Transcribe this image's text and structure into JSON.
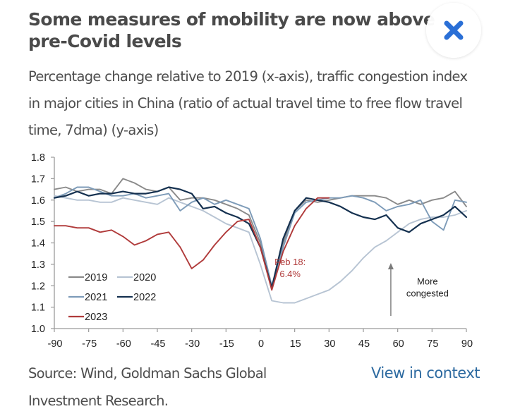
{
  "header": {
    "title": "Some measures of mobility are now above pre-Covid levels",
    "subtitle": "Percentage change relative to 2019 (x-axis), traffic congestion index in major cities in China (ratio of actual travel time to free flow travel time, 7dma) (y-axis)",
    "close_icon": "close-x-icon",
    "close_color": "#2a6fd6"
  },
  "footer": {
    "source": "Source: Wind, Goldman Sachs Global Investment Research.",
    "link_label": "View in context",
    "link_color": "#2d6aa0"
  },
  "chart_data": {
    "type": "line",
    "title": "",
    "xlabel": "",
    "ylabel": "",
    "xlim": [
      -90,
      90
    ],
    "ylim": [
      1.0,
      1.8
    ],
    "xticks": [
      "-90",
      "-75",
      "-60",
      "-45",
      "-30",
      "-15",
      "0",
      "15",
      "30",
      "45",
      "60",
      "75",
      "90"
    ],
    "xtick_values": [
      -90,
      -75,
      -60,
      -45,
      -30,
      -15,
      0,
      15,
      30,
      45,
      60,
      75,
      90
    ],
    "yticks": [
      "1.0",
      "1.1",
      "1.2",
      "1.3",
      "1.4",
      "1.5",
      "1.6",
      "1.7",
      "1.8"
    ],
    "ytick_values": [
      1.0,
      1.1,
      1.2,
      1.3,
      1.4,
      1.5,
      1.6,
      1.7,
      1.8
    ],
    "grid": false,
    "legend": {
      "placement": "bottom-left",
      "columns": 2
    },
    "x": [
      -90,
      -85,
      -80,
      -75,
      -70,
      -65,
      -60,
      -55,
      -50,
      -45,
      -40,
      -35,
      -30,
      -25,
      -20,
      -15,
      -10,
      -5,
      0,
      5,
      10,
      15,
      20,
      25,
      30,
      35,
      40,
      45,
      50,
      55,
      60,
      65,
      70,
      75,
      80,
      85,
      90
    ],
    "series": [
      {
        "name": "2019",
        "color": "#8a8a8a",
        "values": [
          1.65,
          1.66,
          1.64,
          1.65,
          1.65,
          1.63,
          1.7,
          1.68,
          1.65,
          1.64,
          1.66,
          1.6,
          1.61,
          1.61,
          1.6,
          1.58,
          1.56,
          1.53,
          1.4,
          1.19,
          1.4,
          1.55,
          1.6,
          1.59,
          1.6,
          1.61,
          1.62,
          1.62,
          1.62,
          1.61,
          1.58,
          1.6,
          1.58,
          1.6,
          1.61,
          1.64,
          1.57
        ]
      },
      {
        "name": "2020",
        "color": "#b7c4d3",
        "values": [
          1.62,
          1.61,
          1.6,
          1.6,
          1.59,
          1.59,
          1.61,
          1.6,
          1.59,
          1.58,
          1.61,
          1.59,
          1.57,
          1.55,
          1.52,
          1.49,
          1.47,
          1.45,
          1.3,
          1.13,
          1.12,
          1.12,
          1.14,
          1.16,
          1.18,
          1.22,
          1.27,
          1.33,
          1.38,
          1.41,
          1.45,
          1.49,
          1.51,
          1.52,
          1.52,
          1.53,
          1.55
        ]
      },
      {
        "name": "2021",
        "color": "#7d9bb8",
        "values": [
          1.61,
          1.63,
          1.66,
          1.66,
          1.64,
          1.62,
          1.62,
          1.63,
          1.61,
          1.62,
          1.63,
          1.55,
          1.59,
          1.61,
          1.58,
          1.6,
          1.58,
          1.56,
          1.42,
          1.2,
          1.38,
          1.54,
          1.59,
          1.6,
          1.61,
          1.61,
          1.62,
          1.61,
          1.59,
          1.55,
          1.57,
          1.58,
          1.6,
          1.5,
          1.46,
          1.6,
          1.59
        ]
      },
      {
        "name": "2022",
        "color": "#14304f",
        "values": [
          1.61,
          1.62,
          1.64,
          1.62,
          1.63,
          1.63,
          1.64,
          1.63,
          1.63,
          1.64,
          1.66,
          1.65,
          1.63,
          1.56,
          1.57,
          1.54,
          1.52,
          1.49,
          1.38,
          1.19,
          1.42,
          1.55,
          1.61,
          1.6,
          1.59,
          1.57,
          1.54,
          1.52,
          1.51,
          1.53,
          1.47,
          1.45,
          1.49,
          1.51,
          1.53,
          1.57,
          1.52
        ]
      },
      {
        "name": "2023",
        "color": "#b03a3a",
        "values": [
          1.48,
          1.48,
          1.47,
          1.47,
          1.45,
          1.46,
          1.43,
          1.39,
          1.41,
          1.44,
          1.45,
          1.38,
          1.28,
          1.32,
          1.39,
          1.45,
          1.5,
          1.51,
          1.38,
          1.18,
          1.36,
          1.48,
          1.56,
          1.61,
          1.61,
          null,
          null,
          null,
          null,
          null,
          null,
          null,
          null,
          null,
          null,
          null,
          null
        ]
      }
    ],
    "annotations": [
      {
        "text_lines": [
          "Feb 18:",
          "6.4%"
        ],
        "color": "#b03a3a",
        "x": 13,
        "y": 1.25
      },
      {
        "text_lines": [
          "More",
          "congested"
        ],
        "color": "#222222",
        "x": 73,
        "y": 1.16,
        "arrow": "up"
      }
    ]
  }
}
